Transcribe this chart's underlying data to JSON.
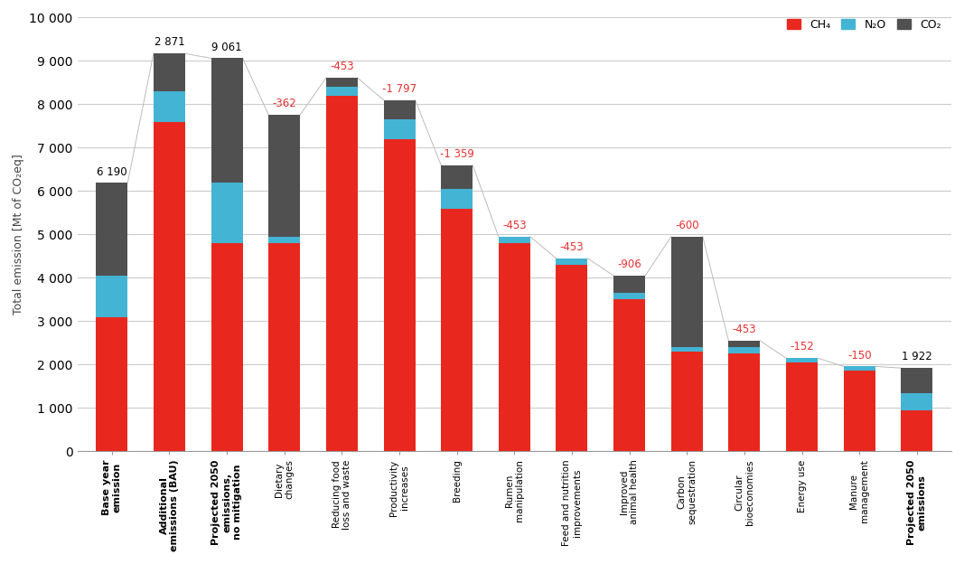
{
  "categories": [
    "Base year\nemission",
    "Additional\nemissions (BAU)",
    "Projected 2050\nemissions,\nno mitigation",
    "Dietary\nchanges",
    "Reducing food\nloss and waste",
    "Productivity\nincreases",
    "Breeding",
    "Rumen\nmanipulation",
    "Feed and nutrition\nimprovements",
    "Improved\nanimal health",
    "Carbon\nsequestration",
    "Circular\nbioeconomies",
    "Energy use",
    "Manure\nmanagement",
    "Projected 2050\nemissions"
  ],
  "bold_indices": [
    0,
    1,
    2,
    14
  ],
  "ch4": [
    3100,
    7600,
    4800,
    4800,
    8200,
    7200,
    5600,
    4800,
    4300,
    3500,
    2300,
    2250,
    2050,
    1870,
    950
  ],
  "n2o": [
    950,
    700,
    1400,
    150,
    200,
    450,
    450,
    150,
    150,
    150,
    100,
    150,
    100,
    90,
    400
  ],
  "co2": [
    2140,
    870,
    2861,
    2810,
    208,
    450,
    550,
    0,
    0,
    400,
    2550,
    150,
    0,
    0,
    572
  ],
  "annotations": [
    "6 190",
    "2 871",
    "9 061",
    "-362",
    "-453",
    "-1 797",
    "-1 359",
    "-453",
    "-453",
    "-906",
    "-600",
    "-453",
    "-152",
    "-150",
    "1 922"
  ],
  "ann_colors": [
    "black",
    "black",
    "black",
    "#e83030",
    "#e83030",
    "#e83030",
    "#e83030",
    "#e83030",
    "#e83030",
    "#e83030",
    "#e83030",
    "#e83030",
    "#e83030",
    "#e83030",
    "black"
  ],
  "ch4_color": "#e8281e",
  "n2o_color": "#44b4d4",
  "co2_color": "#505050",
  "ylabel": "Total emission [Mt of CO₂eq]",
  "ylim": [
    0,
    10000
  ],
  "yticks": [
    0,
    1000,
    2000,
    3000,
    4000,
    5000,
    6000,
    7000,
    8000,
    9000,
    10000
  ],
  "legend_labels": [
    "CH₄",
    "N₂O",
    "CO₂"
  ],
  "bg_color": "#ffffff",
  "grid_color": "#cccccc"
}
